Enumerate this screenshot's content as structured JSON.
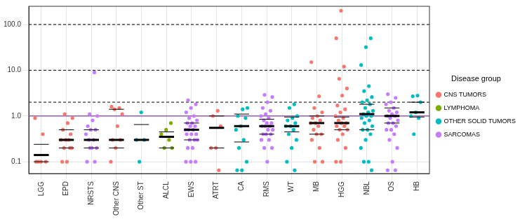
{
  "chart_data": {
    "type": "scatter",
    "log": "y",
    "grid": true,
    "legend": "right",
    "legend_title": "Disease group",
    "marker": "circle",
    "categories": [
      "LGG",
      "EPD",
      "NRSTS",
      "Other CNS",
      "Other ST",
      "ALCL",
      "EWS",
      "ATRT",
      "CA",
      "RMS",
      "WT",
      "MB",
      "HGG",
      "NBL",
      "OS",
      "HB"
    ],
    "ylim": [
      0.055,
      250
    ],
    "yticks": [
      0.1,
      {
        "value": 1,
        "label": "1.0"
      },
      {
        "value": 10,
        "label": "10.0"
      },
      {
        "value": 100,
        "label": "100.0"
      }
    ],
    "series": [
      {
        "name": "CNS TUMORS",
        "color": "#F8766D",
        "values": [
          [
            0.9,
            0.4,
            0.1,
            0.1,
            0.1,
            0.1
          ],
          [
            1.1,
            0.9,
            0.7,
            0.5,
            0.4,
            0.3,
            0.3,
            0.3,
            0.2,
            0.2,
            0.1,
            0.1,
            0.2
          ],
          [],
          [
            1.6,
            1.5,
            1.4,
            1.1,
            0.6,
            0.3,
            0.3,
            0.2,
            0.1
          ],
          [],
          [],
          [],
          [
            1.3,
            1.0,
            0.6,
            0.2,
            0.2,
            0.065
          ],
          [],
          [],
          [],
          [
            15,
            2.7,
            1.5,
            1.2,
            1.0,
            0.9,
            0.8,
            0.7,
            0.7,
            0.6,
            0.5,
            0.4,
            0.4,
            0.3,
            0.2,
            0.1,
            0.1
          ],
          [
            200,
            50,
            12,
            6.5,
            4,
            2.8,
            1.7,
            1.4,
            1.2,
            1.0,
            0.9,
            0.8,
            0.7,
            0.7,
            0.6,
            0.6,
            0.5,
            0.5,
            0.4,
            0.3,
            0.2,
            0.1,
            0.1
          ],
          [],
          [],
          []
        ]
      },
      {
        "name": "LYMPHOMA",
        "color": "#7CAE00",
        "values": [
          [],
          [],
          [],
          [],
          [],
          [
            0.7,
            0.5,
            0.4,
            0.3,
            0.2,
            0.2
          ],
          [],
          [],
          [],
          [],
          [],
          [],
          [],
          [],
          [],
          []
        ]
      },
      {
        "name": "OTHER SOLID TUMORS",
        "color": "#00BFC4",
        "values": [
          [],
          [],
          [],
          [],
          [
            1.2,
            0.3,
            0.3,
            0.1
          ],
          [],
          [],
          [],
          [
            1.5,
            1.4,
            1.0,
            0.9,
            0.6,
            0.5,
            0.3,
            0.2,
            0.1,
            0.065,
            0.065
          ],
          [],
          [
            1.8,
            1.5,
            1.0,
            0.9,
            0.8,
            0.7,
            0.6,
            0.6,
            0.5,
            0.4,
            0.3,
            0.2,
            0.1,
            0.065
          ],
          [],
          [],
          [
            50,
            32,
            13,
            4.5,
            3.5,
            2.6,
            2.2,
            2.0,
            1.8,
            1.5,
            1.3,
            1.2,
            1.1,
            1.0,
            1.0,
            0.9,
            0.8,
            0.7,
            0.6,
            0.5,
            0.5,
            0.4,
            0.3,
            0.2,
            0.1,
            0.1,
            0.065
          ],
          [],
          [
            2.8,
            2.7,
            2.0,
            1.2,
            1.0,
            0.9,
            0.4
          ]
        ]
      },
      {
        "name": "SARCOMAS",
        "color": "#C77CFF",
        "values": [
          [],
          [],
          [
            9,
            1.1,
            1.0,
            0.8,
            0.6,
            0.5,
            0.5,
            0.4,
            0.3,
            0.3,
            0.2,
            0.2,
            0.1,
            0.1,
            0.2
          ],
          [],
          [],
          [],
          [
            2.2,
            1.8,
            1.5,
            1.2,
            1.0,
            0.9,
            0.8,
            0.7,
            0.7,
            0.6,
            0.6,
            0.5,
            0.5,
            0.5,
            0.4,
            0.4,
            0.4,
            0.3,
            0.3,
            0.3,
            0.2,
            0.2,
            0.1,
            0.1,
            0.1
          ],
          [],
          [],
          [
            2.9,
            2.6,
            2.0,
            1.5,
            1.3,
            1.1,
            1.0,
            0.9,
            0.8,
            0.7,
            0.7,
            0.6,
            0.6,
            0.6,
            0.5,
            0.5,
            0.4,
            0.4,
            0.4,
            0.3,
            0.3,
            0.2,
            0.2,
            0.1
          ],
          [],
          [],
          [],
          [],
          [
            3.0,
            2.5,
            2.0,
            1.8,
            1.5,
            1.3,
            1.2,
            1.1,
            1.0,
            1.0,
            0.9,
            0.8,
            0.7,
            0.7,
            0.6,
            0.5,
            0.5,
            0.4,
            0.3,
            0.2,
            0.1,
            0.065,
            0.065
          ],
          []
        ]
      }
    ],
    "summary": {
      "median": [
        0.14,
        0.3,
        0.3,
        0.3,
        0.3,
        0.35,
        0.5,
        0.55,
        0.6,
        0.6,
        0.6,
        0.7,
        0.7,
        1.1,
        1.0,
        1.2
      ],
      "q1": [
        0.1,
        0.2,
        0.2,
        0.2,
        0.3,
        0.2,
        0.3,
        0.2,
        0.27,
        0.4,
        0.45,
        0.4,
        0.5,
        0.5,
        0.7,
        0.95
      ],
      "q3": [
        0.24,
        0.5,
        0.5,
        1.4,
        0.65,
        0.45,
        0.7,
        1.0,
        1.1,
        0.85,
        0.95,
        1.0,
        0.95,
        1.8,
        1.5,
        2.0
      ]
    },
    "hlines": [
      {
        "value": 1,
        "color": "#9B59B6",
        "line_style": "solid"
      },
      {
        "value": 2,
        "color": "#000000",
        "line_style": "dashed"
      },
      {
        "value": 10,
        "color": "#000000",
        "line_style": "dashed"
      },
      {
        "value": 100,
        "color": "#000000",
        "line_style": "dashed"
      }
    ]
  }
}
